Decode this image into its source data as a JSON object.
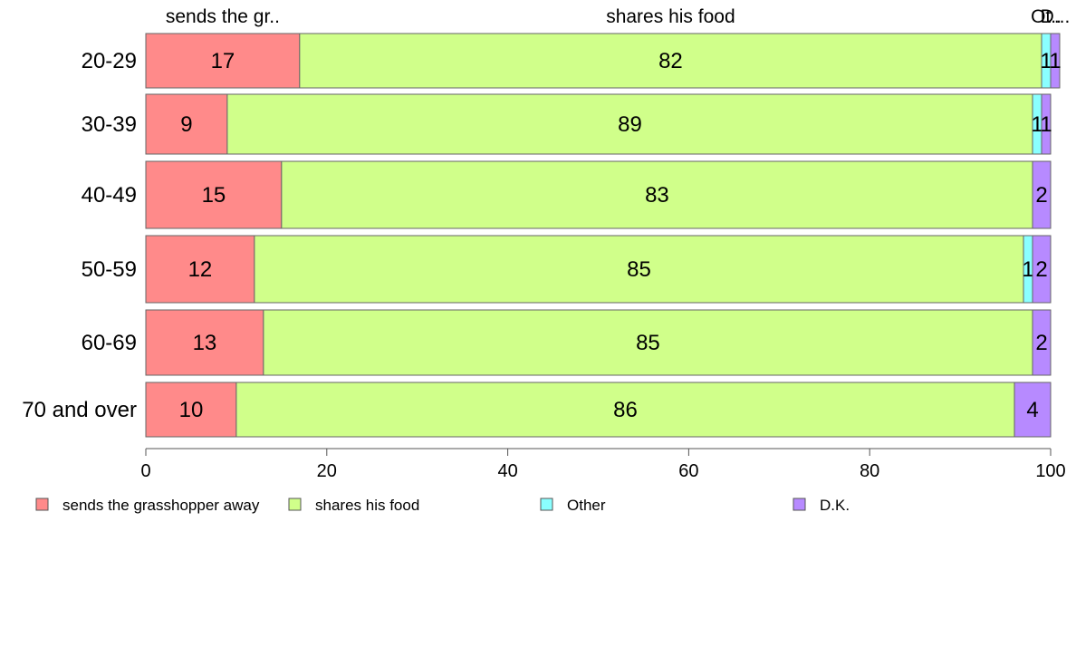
{
  "chart_data": {
    "type": "bar",
    "orientation": "horizontal",
    "stacked": true,
    "categories": [
      "20-29",
      "30-39",
      "40-49",
      "50-59",
      "60-69",
      "70 and over"
    ],
    "series": [
      {
        "name": "sends the grasshopper away",
        "color": "#ff8a8a",
        "values": [
          17,
          9,
          15,
          12,
          13,
          10
        ]
      },
      {
        "name": "shares his food",
        "color": "#d0ff8a",
        "values": [
          82,
          89,
          83,
          85,
          85,
          86
        ]
      },
      {
        "name": "Other",
        "color": "#8affff",
        "values": [
          1,
          1,
          0,
          1,
          0,
          0
        ]
      },
      {
        "name": "D.K.",
        "color": "#b78aff",
        "values": [
          1,
          1,
          2,
          2,
          2,
          4
        ]
      }
    ],
    "top_labels": [
      "sends the gr..",
      "shares his food",
      "Ot..",
      "D..."
    ],
    "xlim": [
      0,
      100
    ],
    "xticks": [
      0,
      20,
      40,
      60,
      80,
      100
    ],
    "grid": false,
    "legend_position": "bottom"
  }
}
